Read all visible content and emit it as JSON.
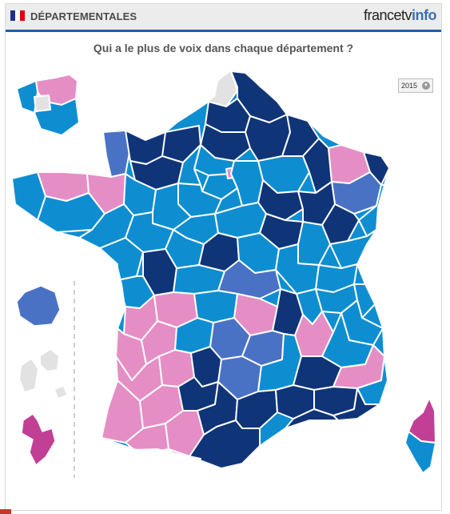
{
  "header": {
    "title": "DÉPARTEMENTALES",
    "brand_part1": "francetv",
    "brand_part2": "info",
    "flag_colors": [
      "#1d2f8f",
      "#ffffff",
      "#e1000f"
    ]
  },
  "subtitle": "Qui a le plus de voix dans chaque département ?",
  "year_select": {
    "selected": "2015",
    "icon": "chevron-down-icon"
  },
  "colors": {
    "dark_blue": "#0f3478",
    "medium_blue": "#0e8ed0",
    "slate_blue": "#4a72c4",
    "pink": "#e58ec5",
    "magenta": "#c23f96",
    "grey": "#e2e2e2",
    "border": "#ffffff"
  }
}
